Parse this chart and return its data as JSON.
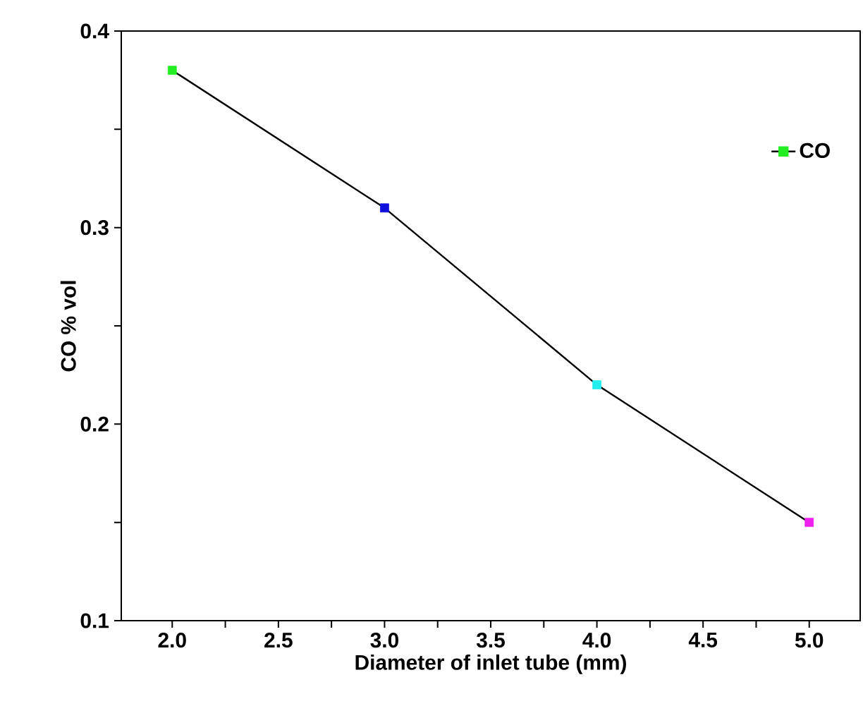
{
  "chart_data": {
    "type": "line",
    "xlabel": "Diameter of inlet tube (mm)",
    "ylabel": "CO % vol",
    "x": [
      2.0,
      3.0,
      4.0,
      5.0
    ],
    "series": [
      {
        "name": "CO",
        "color": "#000000",
        "colors": [
          "#22ee22",
          "#1010dd",
          "#22eeee",
          "#ee22ee"
        ],
        "values": [
          0.38,
          0.31,
          0.22,
          0.15
        ]
      }
    ],
    "xlim": [
      1.76,
      5.24
    ],
    "ylim": [
      0.1,
      0.4
    ],
    "xticks": [
      {
        "value": 2.0,
        "label": "2.0"
      },
      {
        "value": 2.25,
        "label": null
      },
      {
        "value": 2.5,
        "label": "2.5"
      },
      {
        "value": 2.75,
        "label": null
      },
      {
        "value": 3.0,
        "label": "3.0"
      },
      {
        "value": 3.25,
        "label": null
      },
      {
        "value": 3.5,
        "label": "3.5"
      },
      {
        "value": 3.75,
        "label": null
      },
      {
        "value": 4.0,
        "label": "4.0"
      },
      {
        "value": 4.25,
        "label": null
      },
      {
        "value": 4.5,
        "label": "4.5"
      },
      {
        "value": 4.75,
        "label": null
      },
      {
        "value": 5.0,
        "label": "5.0"
      }
    ],
    "yticks": [
      0.1,
      {
        "value": 0.15,
        "label": null
      },
      0.2,
      {
        "value": 0.25,
        "label": null
      },
      0.3,
      {
        "value": 0.35,
        "label": null
      },
      0.4
    ],
    "legend": "top right",
    "marker": "square",
    "line_style": "solid",
    "grid": false
  }
}
